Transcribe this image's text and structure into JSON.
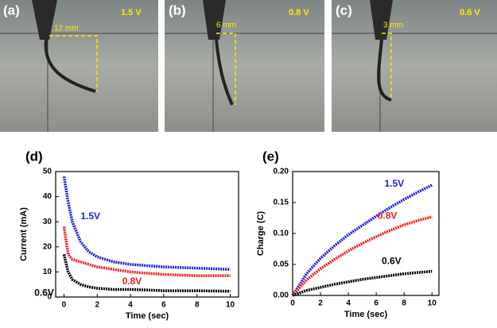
{
  "photos": [
    {
      "label": "(a)",
      "voltage": "1.5 V",
      "distance": "12 mm"
    },
    {
      "label": "(b)",
      "voltage": "0.8 V",
      "distance": "6 mm"
    },
    {
      "label": "(c)",
      "voltage": "0.6 V",
      "distance": "3 mm"
    }
  ],
  "chart_data": [
    {
      "type": "line",
      "title": "(d)",
      "xlabel": "Time (sec)",
      "ylabel": "Current (mA)",
      "x": [
        0,
        0.25,
        0.5,
        1,
        1.5,
        2,
        3,
        4,
        5,
        6,
        8,
        10
      ],
      "series": [
        {
          "name": "1.5V",
          "color": "#1f1fe0",
          "values": [
            48,
            38,
            30,
            22,
            18,
            16,
            14,
            13,
            12.5,
            12,
            11.5,
            11
          ]
        },
        {
          "name": "0.8V",
          "color": "#e82020",
          "values": [
            28,
            17,
            15,
            14,
            13,
            12,
            11,
            10,
            9.5,
            9,
            8.5,
            8.5
          ]
        },
        {
          "name": "0.6V",
          "color": "#000000",
          "values": [
            17,
            10,
            7,
            5,
            4,
            3.5,
            3,
            3,
            2.8,
            2.5,
            2.5,
            2.3
          ]
        }
      ],
      "xlim": [
        -0.5,
        10.5
      ],
      "xticks": [
        0,
        2,
        4,
        6,
        8,
        10
      ],
      "ylim": [
        0,
        50
      ],
      "yticks": [
        0,
        10,
        20,
        30,
        40,
        50
      ]
    },
    {
      "type": "line",
      "title": "(e)",
      "xlabel": "Time (sec)",
      "ylabel": "Charge (C)",
      "x": [
        0,
        1,
        2,
        3,
        4,
        5,
        6,
        7,
        8,
        9,
        10
      ],
      "series": [
        {
          "name": "1.5V",
          "color": "#1f1fe0",
          "values": [
            0,
            0.035,
            0.06,
            0.08,
            0.098,
            0.113,
            0.128,
            0.142,
            0.155,
            0.167,
            0.178
          ]
        },
        {
          "name": "0.8V",
          "color": "#e82020",
          "values": [
            0,
            0.025,
            0.043,
            0.058,
            0.072,
            0.084,
            0.095,
            0.105,
            0.114,
            0.121,
            0.127
          ]
        },
        {
          "name": "0.6V",
          "color": "#000000",
          "values": [
            0,
            0.008,
            0.013,
            0.018,
            0.022,
            0.026,
            0.029,
            0.032,
            0.035,
            0.037,
            0.039
          ]
        }
      ],
      "xlim": [
        0,
        10.5
      ],
      "xticks": [
        0,
        2,
        4,
        6,
        8,
        10
      ],
      "ylim": [
        0,
        0.2
      ],
      "yticks": [
        {
          "value": 0,
          "label": "0.00"
        },
        {
          "value": 0.05,
          "label": "0.05"
        },
        {
          "value": 0.1,
          "label": "0.10"
        },
        {
          "value": 0.15,
          "label": "0.15"
        },
        {
          "value": 0.2,
          "label": "0.20"
        }
      ]
    }
  ]
}
